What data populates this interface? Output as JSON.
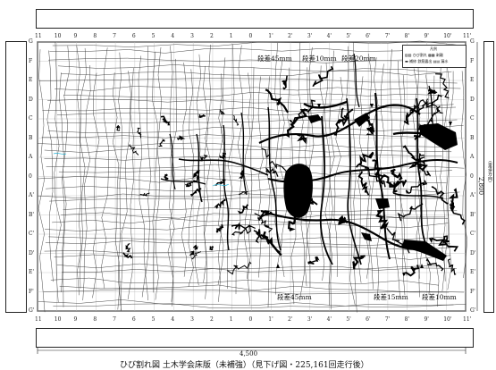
{
  "top_labels": [
    "11",
    "10",
    "9",
    "8",
    "7",
    "6",
    "5",
    "4",
    "3",
    "2",
    "1",
    "0",
    "1'",
    "2'",
    "3'",
    "4'",
    "5'",
    "6'",
    "7'",
    "8'",
    "9'",
    "10'",
    "11'"
  ],
  "bottom_labels": [
    "11",
    "10",
    "9",
    "8",
    "7",
    "6",
    "5",
    "4",
    "3",
    "2",
    "1",
    "0",
    "1'",
    "2'",
    "3'",
    "4'",
    "5'",
    "6'",
    "7'",
    "8'",
    "9'",
    "10'",
    "11'"
  ],
  "left_labels": [
    "G",
    "F",
    "E",
    "D",
    "C",
    "B",
    "A",
    "0",
    "A'",
    "B'",
    "C'",
    "D'",
    "E'",
    "F'",
    "G'"
  ],
  "right_labels": [
    "G",
    "F",
    "E",
    "D",
    "C",
    "B",
    "A",
    "0",
    "A'",
    "B'",
    "C'",
    "D'",
    "E'",
    "F'",
    "G'"
  ],
  "annotations": {
    "step_top_1": "段差45mm",
    "step_top_2": "段差10mm",
    "step_top_3": "段差20mm",
    "step_bottom_1": "段差45mm",
    "step_bottom_2": "段差15mm",
    "step_bottom_3": "段差10mm"
  },
  "dimensions": {
    "width": "4,500",
    "height": "2,800",
    "height_note": "(車道方向)"
  },
  "legend": {
    "title": "凡例",
    "row1": "▨▨ ひび割れ ▩▩ 剥離",
    "row2": "▬ 補修 鉄筋露出 ▤▤ 漏水"
  },
  "caption": "ひび割れ図 土木学会床版（未補強）（見下げ図・225,161回走行後）"
}
